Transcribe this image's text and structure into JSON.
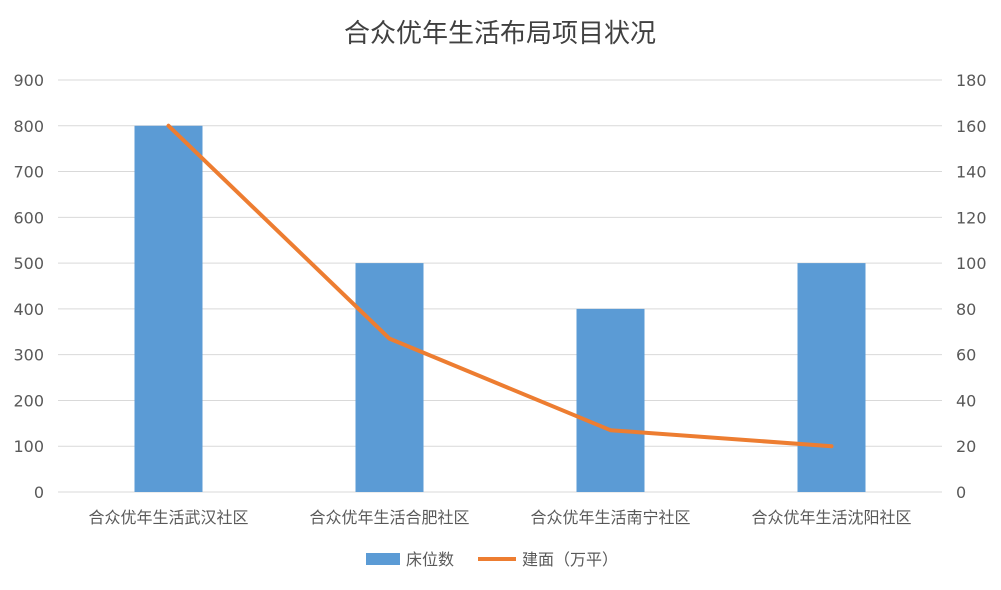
{
  "chart_data": {
    "type": "bar",
    "title": "合众优年生活布局项目状况",
    "categories": [
      "合众优年生活武汉社区",
      "合众优年生活合肥社区",
      "合众优年生活南宁社区",
      "合众优年生活沈阳社区"
    ],
    "series": [
      {
        "name": "床位数",
        "type": "bar",
        "axis": "left",
        "color": "#5B9BD5",
        "values": [
          800,
          500,
          400,
          500
        ]
      },
      {
        "name": "建面（万平）",
        "type": "line",
        "axis": "right",
        "color": "#ED7D31",
        "values": [
          160,
          67,
          27,
          20
        ]
      }
    ],
    "y_left": {
      "ylim": [
        0,
        900
      ],
      "ticks": [
        "0",
        "100",
        "200",
        "300",
        "400",
        "500",
        "600",
        "700",
        "800",
        "900"
      ]
    },
    "y_right": {
      "ylim": [
        0,
        180
      ],
      "ticks": [
        "0",
        "20",
        "40",
        "60",
        "80",
        "100",
        "120",
        "140",
        "160",
        "180"
      ]
    },
    "grid": true,
    "legend": "bottom"
  }
}
